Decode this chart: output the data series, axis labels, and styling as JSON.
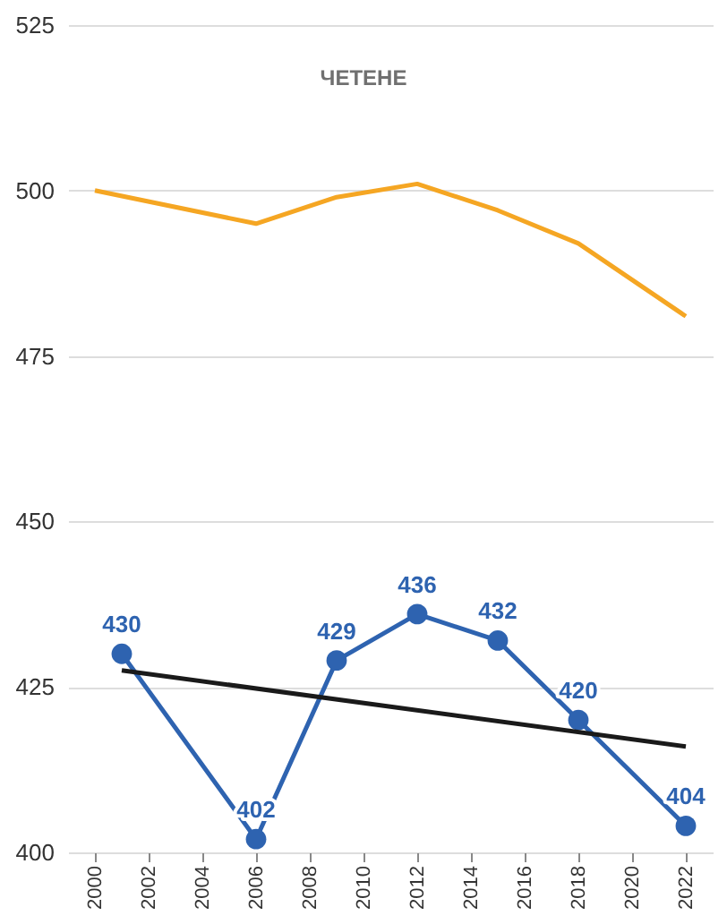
{
  "chart_data": {
    "type": "line",
    "title": "ЧЕТЕНЕ",
    "xlim": [
      1999,
      2023
    ],
    "xticks": [
      2000,
      2002,
      2004,
      2006,
      2008,
      2010,
      2012,
      2014,
      2016,
      2018,
      2020,
      2022
    ],
    "ylim": [
      400,
      525
    ],
    "yticks": [
      400,
      425,
      450,
      475,
      500,
      525
    ],
    "grid": "y",
    "series": [
      {
        "color": "#f5a623",
        "x": [
          2000,
          2006,
          2009,
          2012,
          2015,
          2018,
          2022
        ],
        "values": [
          500,
          495,
          499,
          501,
          497,
          492,
          481
        ],
        "marker": "none"
      },
      {
        "color": "#2e63b0",
        "x": [
          2001,
          2006,
          2009,
          2012,
          2015,
          2018,
          2022
        ],
        "values": [
          430,
          402,
          429,
          436,
          432,
          420,
          404
        ],
        "marker": "circle",
        "value_labels": [
          "430",
          "402",
          "429",
          "436",
          "432",
          "420",
          "404"
        ]
      },
      {
        "type": "line",
        "color": "#1a1a1a",
        "x": [
          2001,
          2022
        ],
        "values": [
          427.5,
          416
        ],
        "marker": "none"
      }
    ]
  }
}
